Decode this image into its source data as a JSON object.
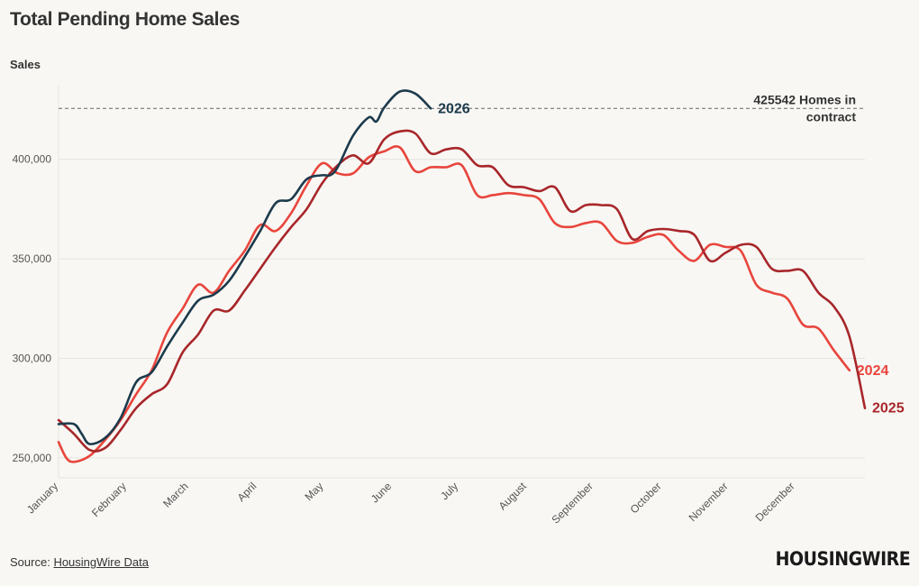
{
  "title": "Total Pending Home Sales",
  "source_label": "Source:",
  "source_link": "HousingWire Data",
  "logo": "HOUSINGWIRE",
  "colors": {
    "2024": "#e8453c",
    "2025": "#a8262a",
    "2026": "#1c3a4c",
    "grid": "#e6e4df",
    "axis_text": "#555555",
    "reference": "#666666"
  },
  "chart_data": {
    "type": "line",
    "ylabel": "Sales",
    "ylim": [
      240000,
      437000
    ],
    "y_ticks": [
      250000,
      300000,
      350000,
      400000
    ],
    "y_tick_labels": [
      "250,000",
      "300,000",
      "350,000",
      "400,000"
    ],
    "x_range": [
      0,
      52
    ],
    "month_ticks": [
      0,
      4.4,
      8.4,
      12.8,
      17.1,
      21.5,
      25.8,
      30.2,
      34.5,
      38.9,
      43.2,
      47.5
    ],
    "month_labels": [
      "January",
      "February",
      "March",
      "April",
      "May",
      "June",
      "July",
      "August",
      "September",
      "October",
      "November",
      "December"
    ],
    "reference_line": {
      "value": 425542,
      "label_line1": "425542 Homes in",
      "label_line2": "contract"
    },
    "series": [
      {
        "name": "2024",
        "x": [
          0,
          0.5,
          1,
          2,
          3,
          4,
          5,
          6,
          7,
          8,
          9,
          10,
          11,
          12,
          13,
          14,
          15,
          16,
          17,
          18,
          19,
          20,
          21,
          22,
          23,
          24,
          25,
          26,
          27,
          28,
          29,
          30,
          31,
          32,
          33,
          34,
          35,
          36,
          37,
          38,
          39,
          40,
          41,
          42,
          43,
          44,
          45,
          46,
          47,
          48,
          49,
          50,
          51
        ],
        "values": [
          258000,
          250000,
          248000,
          251000,
          259000,
          269000,
          282000,
          294000,
          313000,
          325000,
          337000,
          333000,
          344000,
          354000,
          367000,
          364000,
          373000,
          387000,
          398000,
          393000,
          393000,
          401000,
          404000,
          406000,
          394000,
          396000,
          396000,
          397000,
          382000,
          382000,
          383000,
          382000,
          380000,
          368000,
          366000,
          368000,
          368000,
          359000,
          358000,
          361000,
          362000,
          354000,
          349000,
          357000,
          356000,
          354000,
          337000,
          333000,
          330000,
          317000,
          315000,
          304000,
          294000
        ]
      },
      {
        "name": "2025",
        "x": [
          0,
          1,
          2,
          3,
          4,
          5,
          6,
          7,
          8,
          9,
          10,
          11,
          12,
          13,
          14,
          15,
          16,
          17,
          18,
          19,
          20,
          21,
          22,
          23,
          24,
          25,
          26,
          27,
          28,
          29,
          30,
          31,
          32,
          33,
          34,
          35,
          36,
          37,
          38,
          39,
          40,
          41,
          42,
          43,
          44,
          45,
          46,
          47,
          48,
          49,
          50,
          51,
          52
        ],
        "values": [
          269000,
          262000,
          254000,
          255000,
          264000,
          275000,
          282000,
          287000,
          303000,
          312000,
          324000,
          324000,
          334000,
          345000,
          356000,
          366000,
          375000,
          388000,
          397000,
          402000,
          398000,
          410000,
          414000,
          413000,
          403000,
          405000,
          405000,
          397000,
          396000,
          387000,
          386000,
          384000,
          386000,
          374000,
          377000,
          377000,
          375000,
          360000,
          364000,
          365000,
          364000,
          362000,
          349000,
          353000,
          357000,
          356000,
          345000,
          344000,
          344000,
          333000,
          326000,
          311000,
          275000
        ]
      },
      {
        "name": "2026",
        "x": [
          0,
          1,
          1.5,
          2,
          3,
          4,
          5,
          6,
          7,
          8,
          9,
          10,
          11,
          12,
          13,
          14,
          15,
          16,
          17,
          17.5,
          18,
          19,
          20,
          20.5,
          21,
          22,
          23,
          24
        ],
        "values": [
          267000,
          267000,
          262000,
          257000,
          260000,
          270000,
          288000,
          293000,
          306000,
          318000,
          329000,
          332000,
          339000,
          351000,
          364000,
          378000,
          380000,
          390000,
          392000,
          392000,
          396000,
          412000,
          421000,
          419000,
          426000,
          434000,
          433000,
          425542
        ]
      }
    ],
    "end_labels": [
      "2026",
      "2024",
      "2025"
    ]
  }
}
